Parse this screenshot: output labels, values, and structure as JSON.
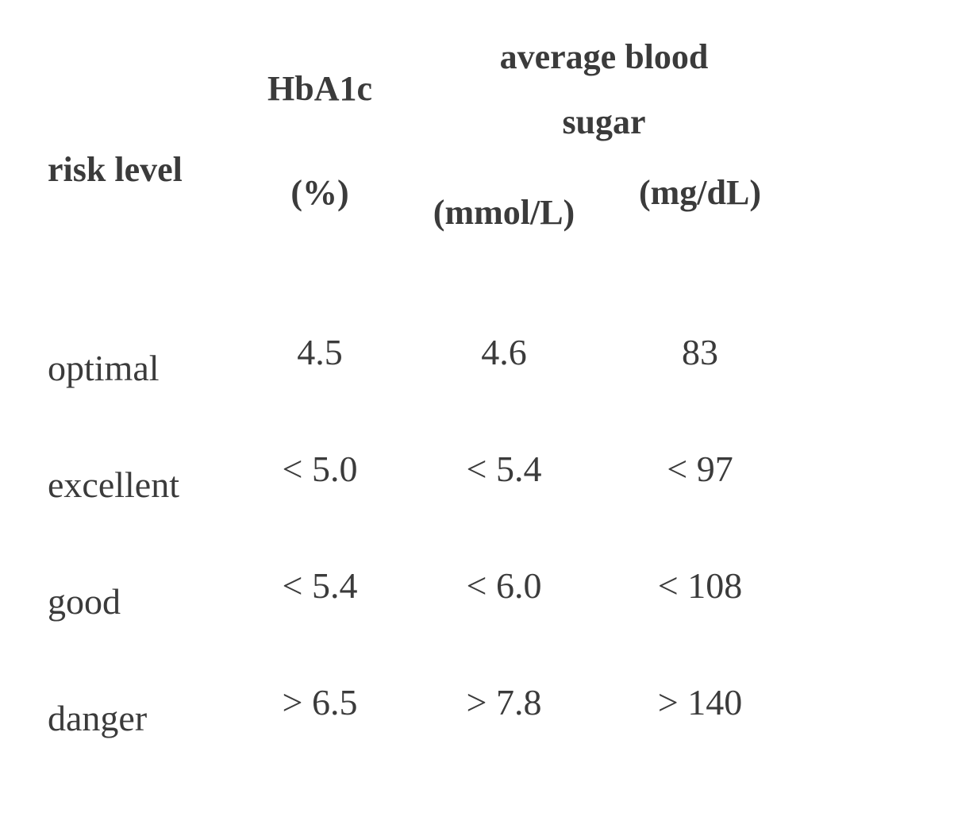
{
  "page": {
    "background_color": "#ffffff",
    "text_color": "#3b3b3b"
  },
  "table": {
    "header": {
      "risk_level": "risk level",
      "hba1c": "HbA1c",
      "avg_blood_sugar": "average blood sugar",
      "units": {
        "percent": "(%)",
        "mmol": "(mmol/L)",
        "mgdl": "(mg/dL)"
      }
    },
    "rows": [
      {
        "label": "optimal",
        "hba1c_pct": "4.5",
        "mmol": "4.6",
        "mgdl": "83"
      },
      {
        "label": "excellent",
        "hba1c_pct": "< 5.0",
        "mmol": "< 5.4",
        "mgdl": "< 97"
      },
      {
        "label": "good",
        "hba1c_pct": "< 5.4",
        "mmol": "< 6.0",
        "mgdl": "< 108"
      },
      {
        "label": "danger",
        "hba1c_pct": "> 6.5",
        "mmol": "> 7.8",
        "mgdl": "> 140"
      }
    ]
  }
}
